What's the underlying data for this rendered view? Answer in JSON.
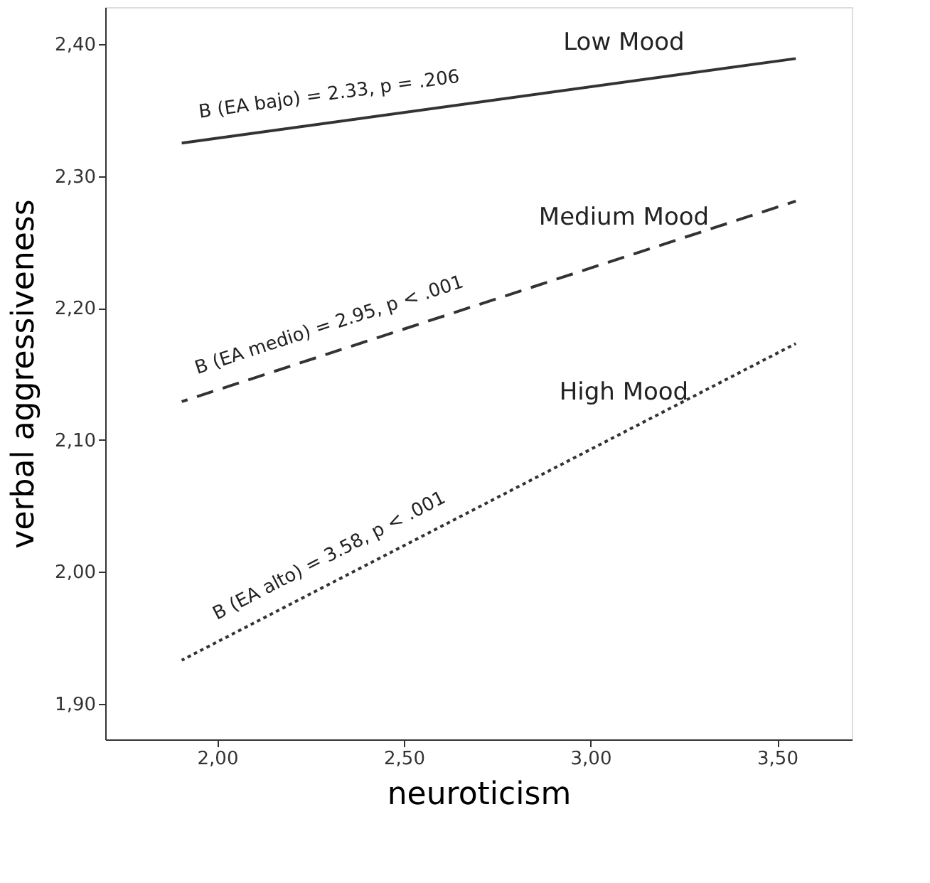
{
  "chart_data": {
    "type": "line",
    "xlabel": "neuroticism",
    "ylabel": "verbal aggressiveness",
    "x": [
      1.905,
      3.55
    ],
    "series": [
      {
        "name": "Low Mood",
        "color": "#333333",
        "line_style": "solid",
        "values": [
          2.325,
          2.389
        ]
      },
      {
        "name": "Medium Mood",
        "color": "#333333",
        "line_style": "dashed",
        "values": [
          2.129,
          2.281
        ]
      },
      {
        "name": "High Mood",
        "color": "#333333",
        "line_style": "dotted",
        "values": [
          1.933,
          2.173
        ]
      }
    ],
    "annotations": [
      "B (EA bajo) = 2.33, p = .206",
      "B (EA medio) = 2.95, p < .001",
      "B (EA alto) = 3.58, p < .001"
    ],
    "xlim": [
      1.7,
      3.7
    ],
    "xticks": [
      {
        "value": 2,
        "label": "2,00"
      },
      {
        "value": 2.5,
        "label": "2,50"
      },
      {
        "value": 3,
        "label": "3,00"
      },
      {
        "value": 3.5,
        "label": "3,50"
      }
    ],
    "ylim": [
      1.873,
      2.428
    ],
    "yticks": [
      {
        "value": 1.9,
        "label": "1,90"
      },
      {
        "value": 2.0,
        "label": "2,00"
      },
      {
        "value": 2.1,
        "label": "2,10"
      },
      {
        "value": 2.2,
        "label": "2,20"
      },
      {
        "value": 2.3,
        "label": "2,30"
      },
      {
        "value": 2.4,
        "label": "2,40"
      }
    ],
    "grid": false,
    "marker": "none"
  }
}
